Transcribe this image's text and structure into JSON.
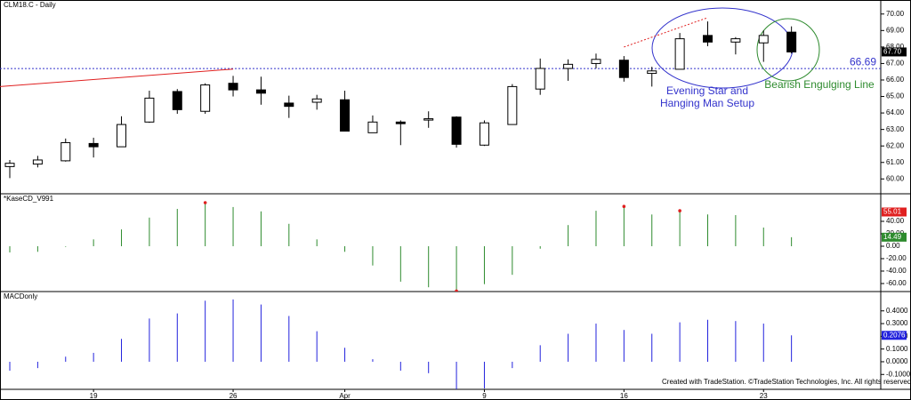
{
  "chart_data": [
    {
      "type": "candlestick",
      "title": "CLM18.C - Daily",
      "categories": [
        null,
        null,
        null,
        "19",
        null,
        null,
        null,
        null,
        "26",
        null,
        null,
        null,
        "Apr",
        null,
        null,
        null,
        null,
        "9",
        null,
        null,
        null,
        null,
        "16",
        null,
        null,
        null,
        null,
        "23",
        null
      ],
      "open": [
        60.75,
        60.9,
        61.1,
        62.15,
        61.95,
        63.45,
        65.3,
        64.1,
        65.8,
        65.4,
        64.6,
        64.65,
        64.8,
        62.8,
        63.45,
        63.6,
        63.75,
        62.05,
        63.3,
        65.45,
        66.7,
        67.0,
        67.2,
        66.4,
        66.65,
        68.7,
        68.3,
        68.25,
        68.9
      ],
      "high": [
        61.15,
        61.4,
        62.45,
        62.5,
        63.8,
        65.35,
        65.45,
        65.8,
        66.25,
        66.2,
        65.05,
        65.1,
        65.35,
        63.85,
        63.55,
        64.1,
        63.8,
        63.55,
        65.75,
        67.3,
        67.25,
        67.6,
        67.45,
        66.8,
        68.85,
        69.55,
        68.6,
        69.0,
        69.25
      ],
      "low": [
        60.05,
        60.7,
        61.05,
        61.3,
        61.95,
        63.4,
        63.95,
        63.95,
        65.0,
        64.5,
        63.7,
        64.2,
        62.9,
        62.8,
        62.05,
        63.1,
        61.9,
        62.0,
        63.3,
        65.1,
        65.95,
        66.7,
        65.9,
        65.6,
        66.65,
        68.05,
        67.55,
        67.1,
        67.6
      ],
      "close": [
        60.95,
        61.15,
        62.2,
        61.95,
        63.3,
        64.9,
        64.2,
        65.7,
        65.4,
        65.2,
        64.4,
        64.85,
        62.9,
        63.45,
        63.35,
        63.65,
        62.1,
        63.4,
        65.6,
        66.7,
        66.95,
        67.25,
        66.15,
        66.55,
        68.5,
        68.3,
        68.5,
        68.7,
        67.7
      ],
      "up_color": "#ffffff",
      "down_color": "#000000",
      "ylim": [
        59.1,
        70.85
      ],
      "yticks": [
        {
          "value": 60,
          "label": "60.00"
        },
        {
          "value": 61,
          "label": "61.00"
        },
        {
          "value": 62,
          "label": "62.00"
        },
        {
          "value": 63,
          "label": "63.00"
        },
        {
          "value": 64,
          "label": "64.00"
        },
        {
          "value": 65,
          "label": "65.00"
        },
        {
          "value": 66,
          "label": "66.00"
        },
        {
          "value": 67,
          "label": "67.00"
        },
        {
          "value": 68,
          "label": "68.00"
        },
        {
          "value": 69,
          "label": "69.00"
        },
        {
          "value": 70,
          "label": "70.00"
        }
      ],
      "hline": {
        "value": 66.69,
        "label": "66.69",
        "color": "#3333cc"
      },
      "tag": {
        "value": 67.7,
        "label": "67.70",
        "color": "#000000"
      },
      "trendlines": [
        {
          "x": [
            -0.35,
            8.0
          ],
          "values": [
            65.6,
            66.66
          ],
          "color": "#e02020",
          "dashed": false
        },
        {
          "x": [
            22,
            25
          ],
          "values": [
            68.0,
            69.78
          ],
          "color": "#e02020",
          "dashed": true
        }
      ],
      "annotations": [
        {
          "text": [
            "Evening Star and",
            "Hanging Man Setup"
          ],
          "color": "#3333cc"
        },
        {
          "text": [
            "Bearish Engulging Line"
          ],
          "color": "#2e8b2e"
        }
      ]
    },
    {
      "type": "stem",
      "title": "*KaseCD_V991",
      "color": "#2e8b2e",
      "marker_color": "#e02020",
      "values": [
        -10,
        -9,
        -1,
        11,
        27,
        46,
        60,
        70,
        63,
        56,
        36,
        11,
        -9,
        -31,
        -57,
        -66,
        -72,
        -61,
        -46,
        -4,
        34,
        57,
        64,
        51,
        57,
        51,
        50,
        30,
        14.49
      ],
      "markers": [
        7,
        16,
        22,
        24
      ],
      "ylim": [
        -72.9,
        84.3
      ],
      "yticks": [
        {
          "value": 40,
          "label": "40.00"
        },
        {
          "value": 20,
          "label": "20.00"
        },
        {
          "value": 0,
          "label": "0.00"
        },
        {
          "value": -20,
          "label": "-20.00"
        },
        {
          "value": -40,
          "label": "-40.00"
        },
        {
          "value": -60,
          "label": "-60.00"
        }
      ],
      "tags": [
        {
          "value": 55.01,
          "label": "55.01",
          "color": "#e02020"
        },
        {
          "value": 14.49,
          "label": "14.49",
          "color": "#2e8b2e"
        }
      ]
    },
    {
      "type": "stem",
      "title": "MACDonly",
      "color": "#2222dd",
      "values": [
        -0.07,
        -0.05,
        0.04,
        0.07,
        0.18,
        0.34,
        0.38,
        0.48,
        0.49,
        0.45,
        0.36,
        0.24,
        0.11,
        0.02,
        -0.07,
        -0.09,
        -0.22,
        -0.21,
        -0.05,
        0.13,
        0.22,
        0.3,
        0.25,
        0.22,
        0.31,
        0.33,
        0.32,
        0.3,
        0.2076
      ],
      "ylim": [
        -0.217,
        0.552
      ],
      "yticks": [
        {
          "value": 0.4,
          "label": "0.4000"
        },
        {
          "value": 0.3,
          "label": "0.3000"
        },
        {
          "value": 0.2,
          "label": "0.2000"
        },
        {
          "value": 0.1,
          "label": "0.1000"
        },
        {
          "value": 0,
          "label": "0.0000"
        },
        {
          "value": -0.1,
          "label": "-0.1000"
        }
      ],
      "tags": [
        {
          "value": 0.2076,
          "label": "0.2076",
          "color": "#2222dd"
        }
      ]
    }
  ],
  "footer": "Created with TradeStation. ©TradeStation Technologies, Inc. All rights reserved."
}
